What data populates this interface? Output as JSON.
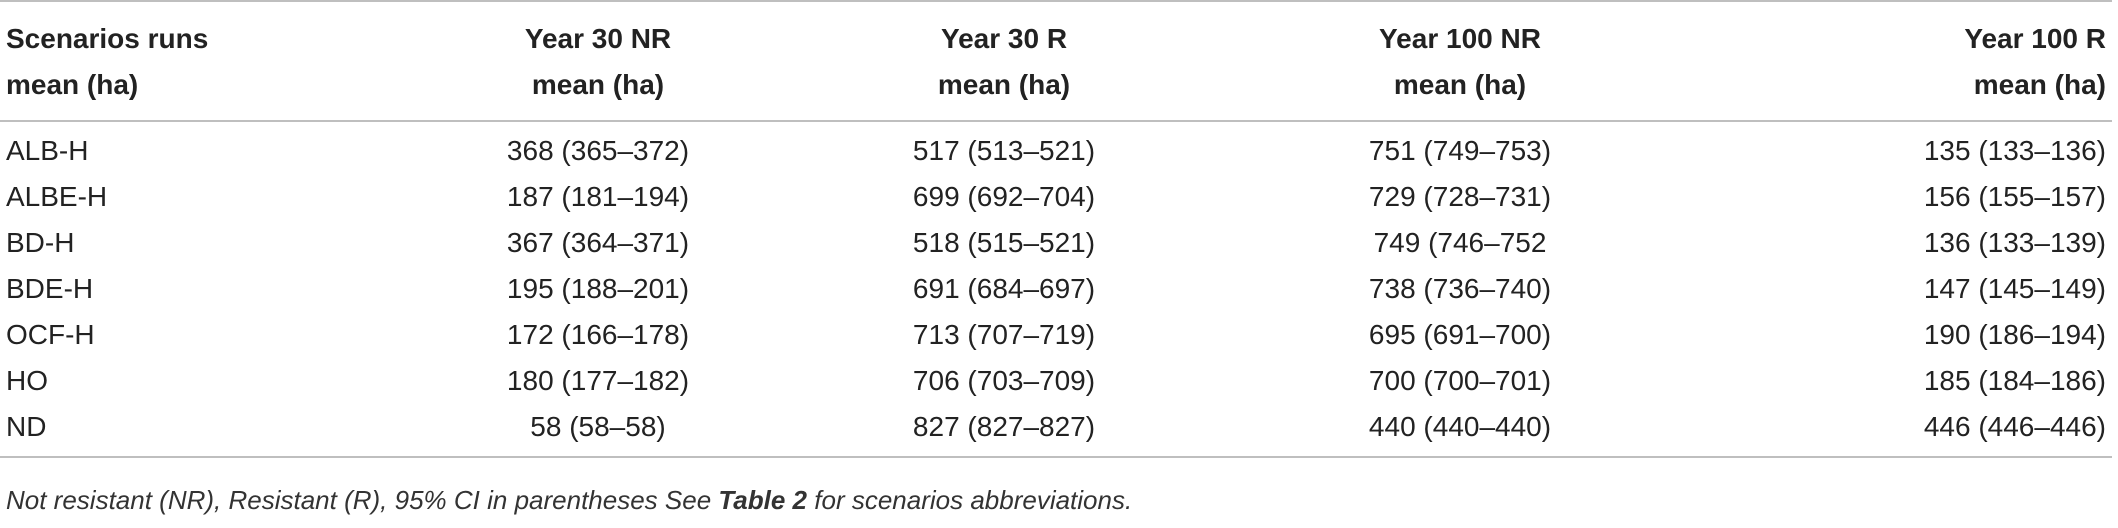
{
  "table": {
    "headers": [
      [
        "Scenarios runs",
        "mean (ha)"
      ],
      [
        "Year 30 NR",
        "mean (ha)"
      ],
      [
        "Year 30 R",
        "mean (ha)"
      ],
      [
        "Year 100 NR",
        "mean (ha)"
      ],
      [
        "Year 100 R",
        "mean (ha)"
      ]
    ],
    "rows": [
      [
        "ALB-H",
        "368 (365–372)",
        "517 (513–521)",
        "751 (749–753)",
        "135 (133–136)"
      ],
      [
        "ALBE-H",
        "187 (181–194)",
        "699 (692–704)",
        "729 (728–731)",
        "156 (155–157)"
      ],
      [
        "BD-H",
        "367 (364–371)",
        "518 (515–521)",
        "749 (746–752",
        "136 (133–139)"
      ],
      [
        "BDE-H",
        "195 (188–201)",
        "691 (684–697)",
        "738 (736–740)",
        "147 (145–149)"
      ],
      [
        "OCF-H",
        "172 (166–178)",
        "713 (707–719)",
        "695 (691–700)",
        "190 (186–194)"
      ],
      [
        "HO",
        "180 (177–182)",
        "706 (703–709)",
        "700 (700–701)",
        "185 (184–186)"
      ],
      [
        "ND",
        "58 (58–58)",
        "827 (827–827)",
        "440 (440–440)",
        "446 (446–446)"
      ]
    ]
  },
  "footnote": {
    "prefix": "Not resistant (NR), Resistant (R), 95% CI in parentheses See ",
    "ref": "Table 2",
    "suffix": " for scenarios abbreviations."
  }
}
